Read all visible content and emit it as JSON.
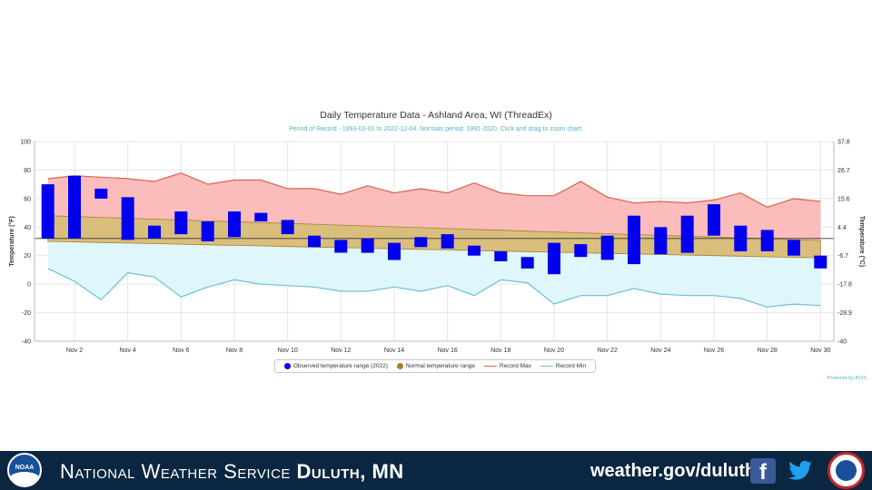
{
  "chart_data": {
    "type": "floating-bar",
    "title": "Daily Temperature Data - Ashland Area, WI (ThreadEx)",
    "subtitle": "Period of Record - 1893-03-01 to 2022-12-04. Normals period: 1991-2020. Click and drag to zoom chart.",
    "ylabel_left": "Temperature (°F)",
    "ylabel_right": "Temperature (°C)",
    "ylim": [
      -40,
      100
    ],
    "y_ticks_f": [
      "100",
      "80",
      "60",
      "40",
      "20",
      "0",
      "-20",
      "-40"
    ],
    "y_ticks_c": [
      "37.8",
      "26.7",
      "15.6",
      "4.4",
      "-6.7",
      "-17.8",
      "-28.9",
      "-40"
    ],
    "x_tick_labels": [
      "Nov 2",
      "Nov 4",
      "Nov 6",
      "Nov 8",
      "Nov 10",
      "Nov 12",
      "Nov 14",
      "Nov 16",
      "Nov 18",
      "Nov 20",
      "Nov 22",
      "Nov 24",
      "Nov 26",
      "Nov 28",
      "Nov 30"
    ],
    "freezing_line": 32,
    "days": [
      1,
      2,
      3,
      4,
      5,
      6,
      7,
      8,
      9,
      10,
      11,
      12,
      13,
      14,
      15,
      16,
      17,
      18,
      19,
      20,
      21,
      22,
      23,
      24,
      25,
      26,
      27,
      28,
      29,
      30
    ],
    "series": [
      {
        "name": "Observed temperature range (2022)",
        "color": "#0000ee",
        "lows": [
          32,
          32,
          60,
          31,
          32,
          35,
          30,
          33,
          44,
          35,
          26,
          22,
          22,
          17,
          26,
          25,
          20,
          16,
          11,
          7,
          19,
          17,
          14,
          21,
          22,
          34,
          23,
          23,
          20,
          11
        ],
        "highs": [
          70,
          76,
          67,
          61,
          41,
          51,
          44,
          51,
          50,
          45,
          34,
          31,
          32,
          29,
          33,
          35,
          27,
          23,
          19,
          29,
          28,
          34,
          48,
          40,
          48,
          56,
          41,
          38,
          31,
          20
        ]
      },
      {
        "name": "Normal temperature range",
        "color": "#a38034",
        "lows": [
          30,
          29.6,
          29.2,
          28.8,
          28.4,
          28.0,
          27.6,
          27.2,
          26.8,
          26.4,
          26.0,
          25.6,
          25.2,
          24.8,
          24.4,
          24.0,
          23.6,
          23.2,
          22.8,
          22.4,
          22.0,
          21.6,
          21.2,
          20.8,
          20.4,
          20.0,
          19.6,
          19.2,
          18.8,
          18.4
        ],
        "highs": [
          48,
          47.4,
          46.8,
          46.2,
          45.6,
          45.0,
          44.4,
          43.8,
          43.2,
          42.6,
          42.0,
          41.4,
          40.8,
          40.2,
          39.6,
          39.0,
          38.4,
          37.8,
          37.2,
          36.6,
          36.0,
          35.4,
          34.8,
          34.2,
          33.6,
          33.0,
          32.4,
          31.8,
          31.2,
          30.6
        ]
      },
      {
        "name": "Record Max",
        "color": "#d9644c",
        "values": [
          74,
          76,
          75,
          74,
          72,
          78,
          70,
          73,
          73,
          67,
          67,
          63,
          69,
          64,
          67,
          64,
          71,
          64,
          62,
          62,
          72,
          61,
          57,
          58,
          57,
          59,
          64,
          54,
          60,
          58
        ]
      },
      {
        "name": "Record Min",
        "color": "#6cc0d6",
        "values": [
          11,
          2,
          -11,
          8,
          5,
          -9,
          -2,
          3,
          0,
          -1,
          -2,
          -5,
          -5,
          -2,
          -5,
          -1,
          -8,
          3,
          1,
          -14,
          -8,
          -8,
          -3,
          -7,
          -8,
          -8,
          -10,
          -16,
          -14,
          -15
        ]
      }
    ],
    "legend_position": "bottom-center",
    "credit": "Powered by ACIS"
  },
  "footer": {
    "title_regular": "National Weather Service ",
    "title_bold": "Duluth, MN",
    "url": "weather.gov/duluth",
    "noaa_text": "NOAA"
  },
  "colors": {
    "observed": "#0000ee",
    "normal_fill": "#d9be7c",
    "record_max_fill": "#fbbcbc",
    "record_min_fill": "#dff6fa",
    "footer_bg": "#0b2640"
  }
}
